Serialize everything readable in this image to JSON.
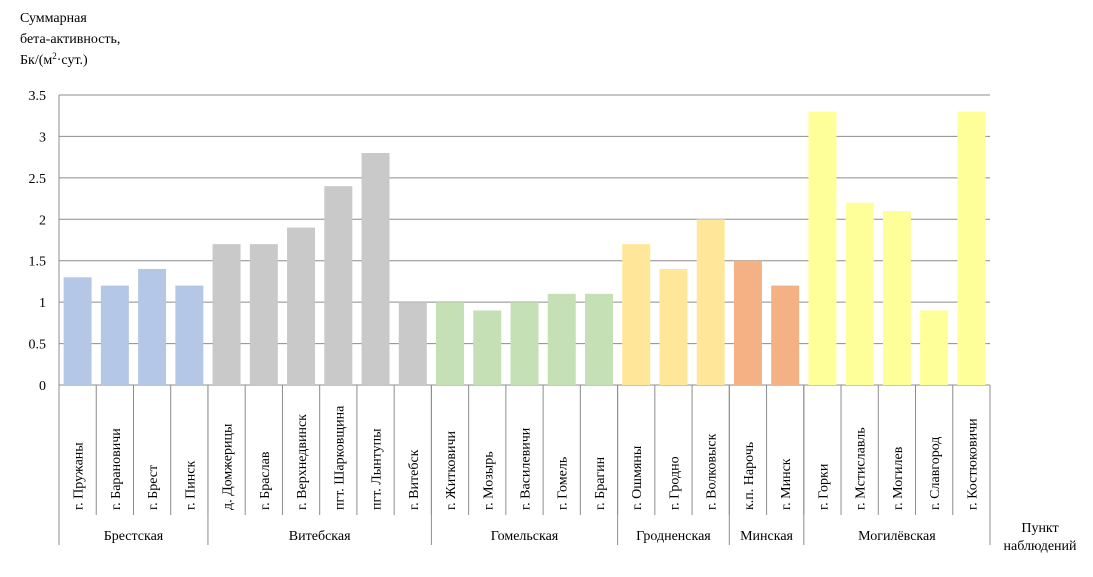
{
  "chart_data": {
    "type": "bar",
    "ylabel_lines": [
      "Суммарная",
      "бета-активность,",
      "Бк/(м",
      "2",
      "·сут.)"
    ],
    "xlabel_lines": [
      "Пункт",
      "наблюдений"
    ],
    "ylim": [
      0,
      3.5
    ],
    "yticks": [
      "0",
      "0.5",
      "1",
      "1.5",
      "2",
      "2.5",
      "3",
      "3.5"
    ],
    "grid": true,
    "categories": [
      "г. Пружаны",
      "г. Барановичи",
      "г. Брест",
      "г. Пинск",
      "д. Домжерицы",
      "г. Браслав",
      "г. Верхнедвинск",
      "пгт. Шарковщина",
      "пгт. Лынтупы",
      "г. Витебск",
      "г. Житковичи",
      "г. Мозырь",
      "г. Василевичи",
      "г. Гомель",
      "г. Брагин",
      "г. Ошмяны",
      "г. Гродно",
      "г. Волковыск",
      "к.п. Нарочь",
      "г. Минск",
      "г. Горки",
      "г. Мстиславль",
      "г. Могилев",
      "г. Славгород",
      "г. Костюковичи"
    ],
    "values": [
      1.3,
      1.2,
      1.4,
      1.2,
      1.7,
      1.7,
      1.9,
      2.4,
      2.8,
      1.0,
      1.0,
      0.9,
      1.0,
      1.1,
      1.1,
      1.7,
      1.4,
      2.0,
      1.5,
      1.2,
      3.3,
      2.2,
      2.1,
      0.9,
      3.3
    ],
    "groups": [
      {
        "name": "Брестская",
        "count": 4,
        "color": "#b4c7e7"
      },
      {
        "name": "Витебская",
        "count": 6,
        "color": "#c9c9c9"
      },
      {
        "name": "Гомельская",
        "count": 5,
        "color": "#c5e0b4"
      },
      {
        "name": "Гродненская",
        "count": 3,
        "color": "#ffe699"
      },
      {
        "name": "Минская",
        "count": 2,
        "color": "#f4b183"
      },
      {
        "name": "Могилёвская",
        "count": 5,
        "color": "#ffff99"
      }
    ]
  }
}
